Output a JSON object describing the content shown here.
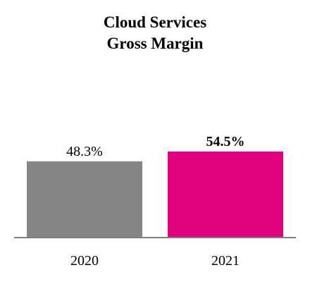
{
  "chart_data": {
    "type": "bar",
    "title": [
      "Cloud Services",
      "Gross Margin"
    ],
    "categories": [
      "2020",
      "2021"
    ],
    "values": [
      48.3,
      54.5
    ],
    "data_labels": [
      "48.3%",
      "54.5%"
    ],
    "bold_labels": [
      false,
      true
    ],
    "bar_colors": [
      "#868686",
      "#e1007d"
    ],
    "axis_color": "#7f7f7f",
    "ylim": [
      0,
      100
    ],
    "grid": false,
    "legend": "none"
  }
}
